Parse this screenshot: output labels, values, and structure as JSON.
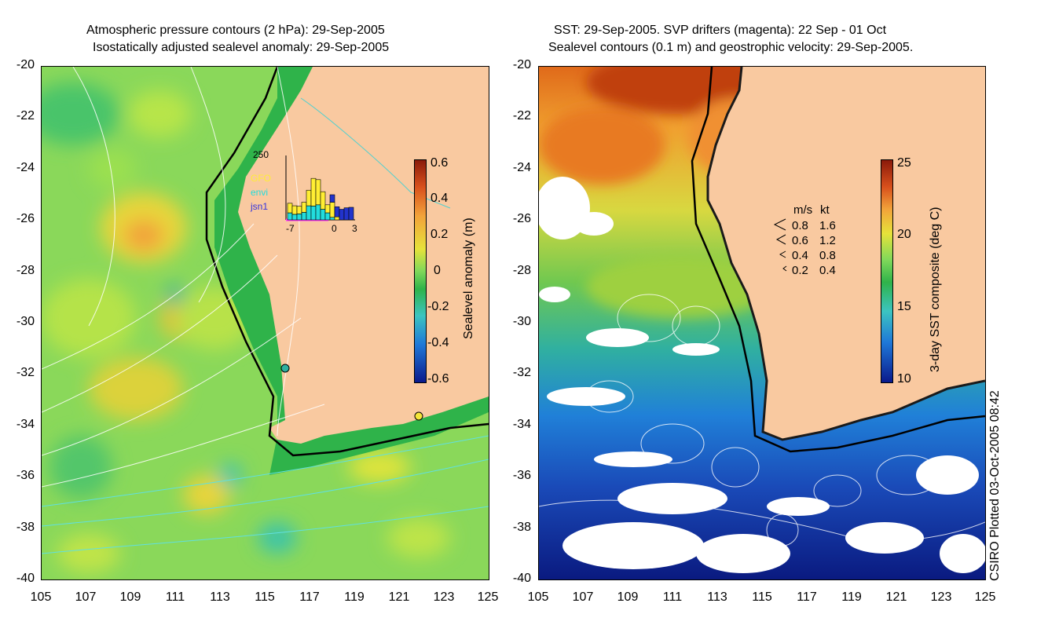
{
  "left_panel": {
    "title_line1": "Atmospheric pressure contours (2 hPa): 29-Sep-2005",
    "title_line2": "Isostatically adjusted sealevel anomaly: 29-Sep-2005",
    "colorbar": {
      "title": "Sealevel anomaly (m)",
      "ticks": [
        "0.6",
        "0.4",
        "0.2",
        "0",
        "-0.2",
        "-0.4",
        "-0.6"
      ]
    },
    "inset": {
      "ymax_label": "250",
      "legend": [
        "GFO",
        "envi",
        "jsn1"
      ],
      "x_ticks": [
        "-7",
        "0",
        "3"
      ],
      "gfo_values": [
        38,
        34,
        30,
        40,
        62,
        110,
        100,
        70,
        32,
        60,
        12,
        0,
        0,
        0
      ],
      "envi_values": [
        28,
        22,
        24,
        30,
        56,
        55,
        60,
        42,
        28,
        10,
        0,
        0,
        0,
        0
      ],
      "jsn1_values": [
        0,
        0,
        0,
        0,
        0,
        0,
        0,
        0,
        0,
        30,
        40,
        42,
        48,
        50
      ],
      "ymax": 250
    },
    "markers": [
      "cyan-site",
      "yellow-site"
    ]
  },
  "right_panel": {
    "title_line1": "SST: 29-Sep-2005. SVP drifters (magenta): 22 Sep - 01 Oct",
    "title_line2": "Sealevel contours (0.1 m) and geostrophic velocity: 29-Sep-2005.",
    "colorbar": {
      "title": "3-day SST composite (deg C)",
      "ticks": [
        "25",
        "20",
        "15",
        "10"
      ]
    },
    "speed_legend": {
      "header_ms": "m/s",
      "header_kt": "kt",
      "rows": [
        {
          "ms": "0.8",
          "kt": "1.6"
        },
        {
          "ms": "0.6",
          "kt": "1.2"
        },
        {
          "ms": "0.4",
          "kt": "0.8"
        },
        {
          "ms": "0.2",
          "kt": "0.4"
        }
      ]
    }
  },
  "axes": {
    "y_ticks": [
      "-20",
      "-22",
      "-24",
      "-26",
      "-28",
      "-30",
      "-32",
      "-34",
      "-36",
      "-38",
      "-40"
    ],
    "x_ticks": [
      "105",
      "107",
      "109",
      "111",
      "113",
      "115",
      "117",
      "119",
      "121",
      "123",
      "125"
    ]
  },
  "credit": "CSIRO Plotted 03-Oct-2005 08:42",
  "colors": {
    "land": "#f9c9a0",
    "ocean_green": "#7fd85a",
    "shelf_green": "#2fb34a"
  }
}
